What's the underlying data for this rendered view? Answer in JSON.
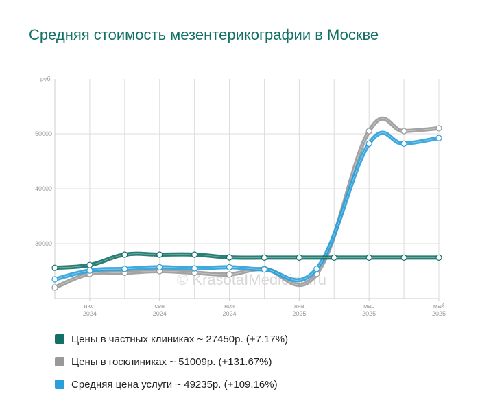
{
  "title": "Средняя стоимость мезентерикографии в Москве",
  "watermark": "© KrasotaIMedicina.ru",
  "legend": [
    {
      "label": "Цены в частных клиниках ~ 27450р. (+7.17%)",
      "color": "#127066"
    },
    {
      "label": "Цены в госклиниках ~ 51009р. (+131.67%)",
      "color": "#999999"
    },
    {
      "label": "Средняя цена услуги ~ 49235р. (+109.16%)",
      "color": "#29a0dc"
    }
  ],
  "chart_data": {
    "type": "line",
    "ylabel": "руб.",
    "ylim": [
      20000,
      60000
    ],
    "yticks": [
      30000,
      40000,
      50000
    ],
    "xticks": [
      {
        "i": 1,
        "l1": "июл",
        "l2": "2024"
      },
      {
        "i": 3,
        "l1": "сен",
        "l2": "2024"
      },
      {
        "i": 5,
        "l1": "ноя",
        "l2": "2024"
      },
      {
        "i": 7,
        "l1": "янв",
        "l2": "2025"
      },
      {
        "i": 9,
        "l1": "мар",
        "l2": "2025"
      },
      {
        "i": 11,
        "l1": "май",
        "l2": "2025"
      }
    ],
    "grid": true,
    "series": [
      {
        "name": "Цены в госклиниках ~ 51009р. (+131.67%)",
        "color": "#999999",
        "values": [
          22000,
          24500,
          24700,
          25000,
          24700,
          24400,
          25400,
          24500,
          50500,
          50500,
          51009
        ]
      },
      {
        "name": "Средняя цена услуги ~ 49235р. (+109.16%)",
        "color": "#29a0dc",
        "values": [
          23500,
          25100,
          25400,
          25700,
          25500,
          25700,
          25300,
          25400,
          48200,
          48200,
          49235
        ]
      },
      {
        "name": "Цены в частных клиниках ~ 27450р. (+7.17%)",
        "color": "#127066",
        "values": [
          25600,
          26100,
          28000,
          28000,
          28000,
          27500,
          27450,
          27450,
          27450,
          27450,
          27450,
          27450
        ]
      }
    ],
    "series_x": [
      [
        0,
        1,
        2,
        3,
        4,
        5,
        6,
        7.5,
        9,
        10,
        11
      ],
      [
        0,
        1,
        2,
        3,
        4,
        5,
        6,
        7.5,
        9,
        10,
        11
      ],
      [
        0,
        1,
        2,
        3,
        4,
        5,
        6,
        7,
        8,
        9,
        10,
        11
      ]
    ]
  }
}
